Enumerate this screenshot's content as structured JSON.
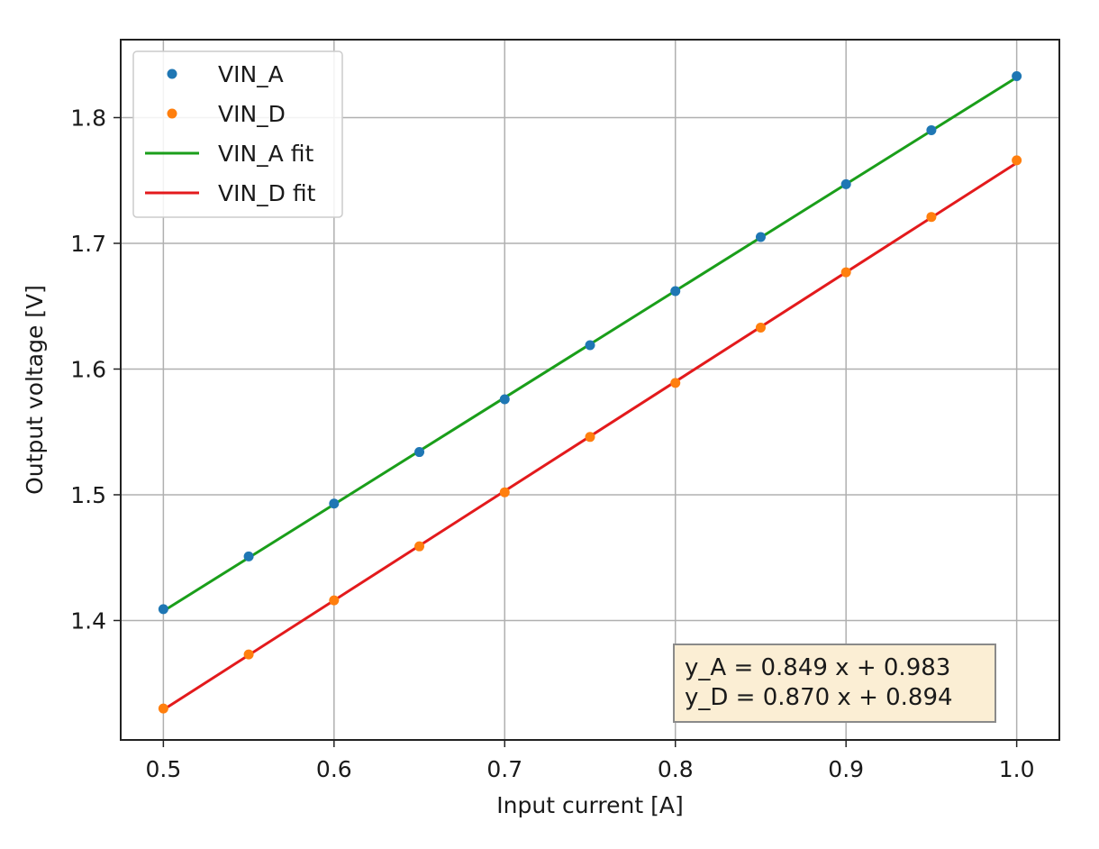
{
  "chart_data": {
    "type": "scatter",
    "title": "",
    "xlabel": "Input current [A]",
    "ylabel": "Output voltage [V]",
    "xlim": [
      0.475,
      1.025
    ],
    "ylim": [
      1.305,
      1.862
    ],
    "xticks": [
      0.5,
      0.6,
      0.7,
      0.8,
      0.9,
      1.0
    ],
    "xtick_labels": [
      "0.5",
      "0.6",
      "0.7",
      "0.8",
      "0.9",
      "1.0"
    ],
    "yticks": [
      1.4,
      1.5,
      1.6,
      1.7,
      1.8
    ],
    "ytick_labels": [
      "1.4",
      "1.5",
      "1.6",
      "1.7",
      "1.8"
    ],
    "grid": true,
    "legend_position": "top-left",
    "series": [
      {
        "name": "VIN_A",
        "kind": "points",
        "color": "#1f77b4",
        "x": [
          0.5,
          0.55,
          0.6,
          0.65,
          0.7,
          0.75,
          0.8,
          0.85,
          0.9,
          0.95,
          1.0
        ],
        "y": [
          1.409,
          1.451,
          1.493,
          1.534,
          1.576,
          1.619,
          1.662,
          1.705,
          1.747,
          1.79,
          1.833
        ]
      },
      {
        "name": "VIN_D",
        "kind": "points",
        "color": "#ff7f0e",
        "x": [
          0.5,
          0.55,
          0.6,
          0.65,
          0.7,
          0.75,
          0.8,
          0.85,
          0.9,
          0.95,
          1.0
        ],
        "y": [
          1.33,
          1.373,
          1.416,
          1.459,
          1.502,
          1.546,
          1.589,
          1.633,
          1.677,
          1.721,
          1.766
        ]
      },
      {
        "name": "VIN_A fit",
        "kind": "line",
        "color": "#1a9e1a",
        "slope": 0.849,
        "intercept": 0.983,
        "x_range": [
          0.5,
          1.0
        ]
      },
      {
        "name": "VIN_D fit",
        "kind": "line",
        "color": "#e31a1c",
        "slope": 0.87,
        "intercept": 0.894,
        "x_range": [
          0.5,
          1.0
        ]
      }
    ],
    "annotation": {
      "position": "bottom-right",
      "lines": [
        "y_A = 0.849 x + 0.983",
        "y_D = 0.870 x + 0.894"
      ],
      "background": "#fbeed4",
      "border": "#8a8a8a"
    }
  }
}
